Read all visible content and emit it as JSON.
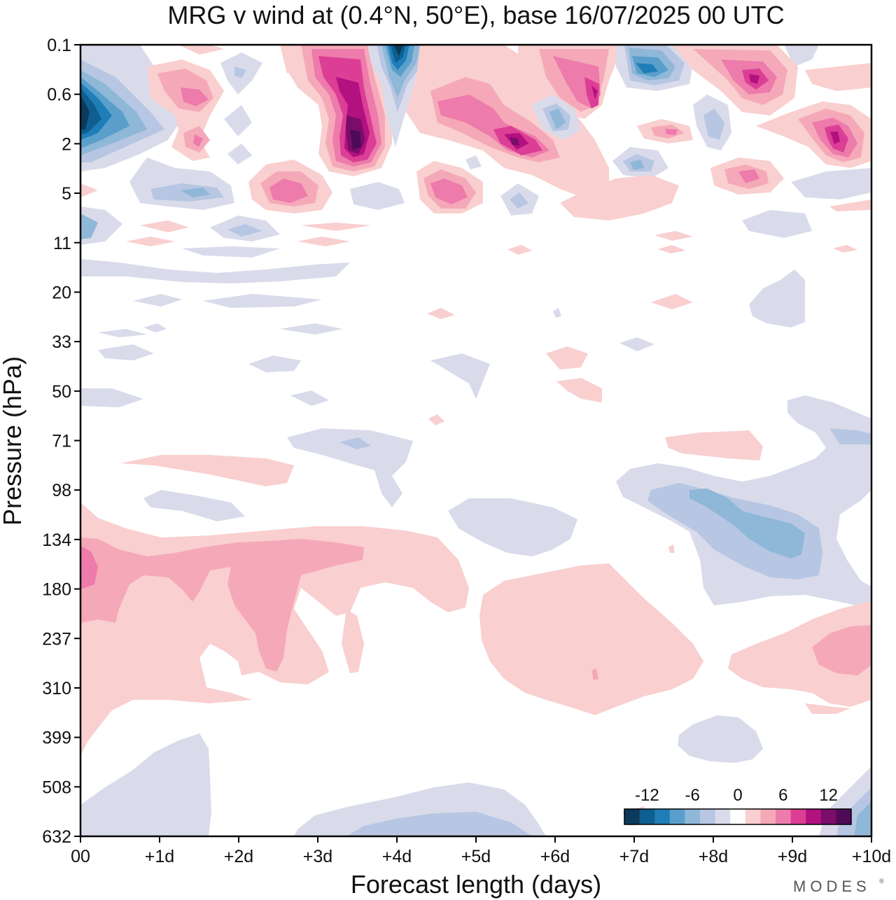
{
  "chart_data": {
    "type": "heatmap",
    "title": "MRG v wind at (0.4°N, 50°E),  base 16/07/2025  00 UTC",
    "xlabel": "Forecast length (days)",
    "ylabel": "Pressure (hPa)",
    "x_ticks": [
      "00",
      "+1d",
      "+2d",
      "+3d",
      "+4d",
      "+5d",
      "+6d",
      "+7d",
      "+8d",
      "+9d",
      "+10d"
    ],
    "y_ticks": [
      "0.1",
      "0.6",
      "2",
      "5",
      "11",
      "20",
      "33",
      "50",
      "71",
      "98",
      "134",
      "180",
      "237",
      "310",
      "399",
      "508",
      "632"
    ],
    "xlim_days": [
      0,
      10
    ],
    "colorbar": {
      "tick_labels": [
        "-12",
        "-6",
        "0",
        "6",
        "12"
      ],
      "levels": [
        -14,
        -12,
        -10,
        -8,
        -6,
        -4,
        -2,
        0,
        2,
        4,
        6,
        8,
        10,
        12,
        14
      ],
      "colors": [
        "#0b3a5c",
        "#0e5f8f",
        "#1f7db8",
        "#5a9fcb",
        "#8fb7d8",
        "#b7c6e2",
        "#d9dbeb",
        "#ffffff",
        "#f9cfcf",
        "#f5a9b8",
        "#ed7bab",
        "#dc3e95",
        "#b3117f",
        "#7a0c6a",
        "#4f0a57"
      ]
    },
    "features": [
      {
        "name": "strong-negative-upper-left",
        "day": 0.2,
        "level": "0.6–2",
        "value": -14
      },
      {
        "name": "strong-positive-near-3.5d",
        "day": 3.5,
        "level": "2",
        "value": 14
      },
      {
        "name": "negative-near-4d",
        "day": 4.0,
        "level": "0.1",
        "value": -14
      },
      {
        "name": "positive-near-5.5d",
        "day": 5.5,
        "level": "2",
        "value": 12
      },
      {
        "name": "negative-near-7d",
        "day": 7.1,
        "level": "0.1–0.6",
        "value": -10
      },
      {
        "name": "positive-near-9.5d",
        "day": 9.5,
        "level": "2",
        "value": 10
      },
      {
        "name": "negative-band-8d-134hPa",
        "day": 8.5,
        "level": "98–134",
        "value": -6
      },
      {
        "name": "positive-lower-left",
        "day": 0.3,
        "level": "134–237",
        "value": 6
      },
      {
        "name": "positive-near-2.5d-180hPa",
        "day": 2.5,
        "level": "180",
        "value": 4
      },
      {
        "name": "positive-near-10d-237hPa",
        "day": 9.7,
        "level": "237",
        "value": 4
      }
    ]
  },
  "branding": {
    "name": "MODES",
    "mark": "®"
  }
}
